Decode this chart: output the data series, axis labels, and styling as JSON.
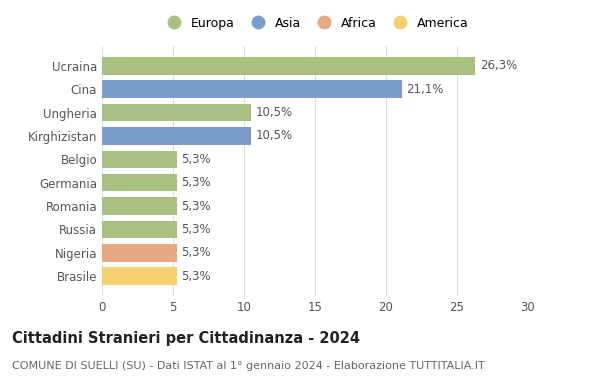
{
  "countries": [
    "Brasile",
    "Nigeria",
    "Russia",
    "Romania",
    "Germania",
    "Belgio",
    "Kirghizistan",
    "Ungheria",
    "Cina",
    "Ucraina"
  ],
  "values": [
    5.3,
    5.3,
    5.3,
    5.3,
    5.3,
    5.3,
    10.5,
    10.5,
    21.1,
    26.3
  ],
  "labels": [
    "5,3%",
    "5,3%",
    "5,3%",
    "5,3%",
    "5,3%",
    "5,3%",
    "10,5%",
    "10,5%",
    "21,1%",
    "26,3%"
  ],
  "continents": [
    "America",
    "Africa",
    "Europa",
    "Europa",
    "Europa",
    "Europa",
    "Asia",
    "Europa",
    "Asia",
    "Europa"
  ],
  "colors": {
    "Europa": "#a8c080",
    "Asia": "#7b9ccc",
    "Africa": "#e8a882",
    "America": "#f5d070"
  },
  "legend_order": [
    "Europa",
    "Asia",
    "Africa",
    "America"
  ],
  "xlim": [
    0,
    30
  ],
  "xticks": [
    0,
    5,
    10,
    15,
    20,
    25,
    30
  ],
  "title": "Cittadini Stranieri per Cittadinanza - 2024",
  "subtitle": "COMUNE DI SUELLI (SU) - Dati ISTAT al 1° gennaio 2024 - Elaborazione TUTTITALIA.IT",
  "bg_color": "#ffffff",
  "grid_color": "#dddddd",
  "bar_height": 0.75,
  "label_fontsize": 8.5,
  "tick_fontsize": 8.5,
  "title_fontsize": 10.5,
  "subtitle_fontsize": 8.0
}
